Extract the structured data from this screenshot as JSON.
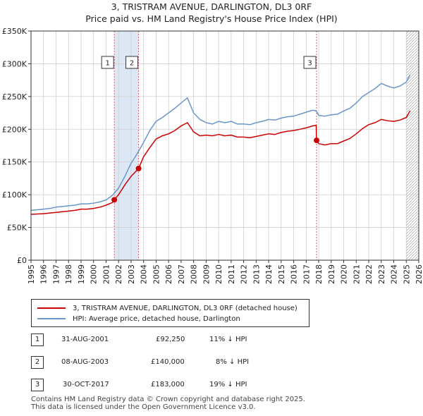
{
  "title": "3, TRISTRAM AVENUE, DARLINGTON, DL3 0RF",
  "subtitle": "Price paid vs. HM Land Registry's House Price Index (HPI)",
  "legend": {
    "property": "3, TRISTRAM AVENUE, DARLINGTON, DL3 0RF (detached house)",
    "hpi": "HPI: Average price, detached house, Darlington"
  },
  "transactions": [
    {
      "num": "1",
      "date": "31-AUG-2001",
      "price": "£92,250",
      "delta": "11% ↓ HPI"
    },
    {
      "num": "2",
      "date": "08-AUG-2003",
      "price": "£140,000",
      "delta": "8% ↓ HPI"
    },
    {
      "num": "3",
      "date": "30-OCT-2017",
      "price": "£183,000",
      "delta": "19% ↓ HPI"
    }
  ],
  "footer": {
    "line1": "Contains HM Land Registry data © Crown copyright and database right 2025.",
    "line2": "This data is licensed under the Open Government Licence v3.0."
  },
  "chart_data": {
    "type": "line",
    "title": "3, TRISTRAM AVENUE, DARLINGTON, DL3 0RF",
    "subtitle": "Price paid vs. HM Land Registry's House Price Index (HPI)",
    "xlim": [
      1995,
      2026
    ],
    "ylim": [
      0,
      350000
    ],
    "x_ticks": [
      1995,
      1996,
      1997,
      1998,
      1999,
      2000,
      2001,
      2002,
      2003,
      2004,
      2005,
      2006,
      2007,
      2008,
      2009,
      2010,
      2011,
      2012,
      2013,
      2014,
      2015,
      2016,
      2017,
      2018,
      2019,
      2020,
      2021,
      2022,
      2023,
      2024,
      2025,
      2026
    ],
    "y_ticks": [
      {
        "value": 0,
        "label": "£0"
      },
      {
        "value": 50000,
        "label": "£50K"
      },
      {
        "value": 100000,
        "label": "£100K"
      },
      {
        "value": 150000,
        "label": "£150K"
      },
      {
        "value": 200000,
        "label": "£200K"
      },
      {
        "value": 250000,
        "label": "£250K"
      },
      {
        "value": 300000,
        "label": "£300K"
      },
      {
        "value": 350000,
        "label": "£350K"
      }
    ],
    "grid": true,
    "legend_position": "below",
    "shaded_ranges": [
      [
        2001.66,
        2003.6
      ]
    ],
    "future_hatch_from": 2025.0,
    "colors": {
      "property": "#cc0000",
      "hpi": "#6a96cc",
      "shade": "#dde8f6",
      "grid": "#cfcfcf",
      "sale_line": "#e06060"
    },
    "series": [
      {
        "name": "HPI: Average price, detached house, Darlington",
        "x": [
          1995.0,
          1995.5,
          1996.0,
          1996.5,
          1997.0,
          1997.5,
          1998.0,
          1998.5,
          1999.0,
          1999.5,
          2000.0,
          2000.5,
          2001.0,
          2001.5,
          2002.0,
          2002.5,
          2003.0,
          2003.5,
          2004.0,
          2004.5,
          2005.0,
          2005.5,
          2006.0,
          2006.5,
          2007.0,
          2007.5,
          2008.0,
          2008.5,
          2009.0,
          2009.5,
          2010.0,
          2010.5,
          2011.0,
          2011.5,
          2012.0,
          2012.5,
          2013.0,
          2013.5,
          2014.0,
          2014.5,
          2015.0,
          2015.5,
          2016.0,
          2016.5,
          2017.0,
          2017.5,
          2017.8,
          2018.0,
          2018.5,
          2019.0,
          2019.5,
          2020.0,
          2020.5,
          2021.0,
          2021.5,
          2022.0,
          2022.5,
          2023.0,
          2023.5,
          2024.0,
          2024.5,
          2025.0,
          2025.3
        ],
        "y": [
          76000,
          77000,
          78000,
          79000,
          81000,
          82000,
          83000,
          84000,
          86000,
          86000,
          87000,
          89000,
          92000,
          99000,
          110000,
          128000,
          148000,
          163000,
          180000,
          198000,
          212000,
          218000,
          225000,
          232000,
          240000,
          248000,
          225000,
          215000,
          210000,
          208000,
          212000,
          210000,
          212000,
          208000,
          208000,
          207000,
          210000,
          212000,
          215000,
          214000,
          217000,
          219000,
          220000,
          223000,
          226000,
          229000,
          228000,
          221000,
          220000,
          222000,
          223000,
          228000,
          232000,
          240000,
          250000,
          256000,
          262000,
          270000,
          266000,
          263000,
          266000,
          272000,
          283000
        ]
      },
      {
        "name": "3, TRISTRAM AVENUE, DARLINGTON, DL3 0RF (detached house)",
        "x": [
          1995.0,
          1995.5,
          1996.0,
          1996.5,
          1997.0,
          1997.5,
          1998.0,
          1998.5,
          1999.0,
          1999.5,
          2000.0,
          2000.5,
          2001.0,
          2001.5,
          2001.66,
          2002.0,
          2002.5,
          2003.0,
          2003.6,
          2004.0,
          2004.5,
          2005.0,
          2005.5,
          2006.0,
          2006.5,
          2007.0,
          2007.5,
          2008.0,
          2008.5,
          2009.0,
          2009.5,
          2010.0,
          2010.5,
          2011.0,
          2011.5,
          2012.0,
          2012.5,
          2013.0,
          2013.5,
          2014.0,
          2014.5,
          2015.0,
          2015.5,
          2016.0,
          2016.5,
          2017.0,
          2017.5,
          2017.8,
          2017.83,
          2018.0,
          2018.5,
          2019.0,
          2019.5,
          2020.0,
          2020.5,
          2021.0,
          2021.5,
          2022.0,
          2022.5,
          2023.0,
          2023.5,
          2024.0,
          2024.5,
          2025.0,
          2025.3
        ],
        "y": [
          70000,
          70500,
          71000,
          72000,
          73000,
          74000,
          75000,
          76000,
          78000,
          78000,
          79000,
          81000,
          84000,
          88000,
          92250,
          100000,
          115000,
          128000,
          140000,
          158000,
          172000,
          185000,
          190000,
          193000,
          198000,
          205000,
          210000,
          196000,
          190000,
          191000,
          190000,
          192000,
          190000,
          191000,
          188000,
          188000,
          187000,
          189000,
          191000,
          193000,
          192000,
          195000,
          197000,
          198000,
          200000,
          202000,
          205000,
          206000,
          183000,
          178000,
          176000,
          178000,
          178000,
          182000,
          186000,
          193000,
          201000,
          207000,
          210000,
          215000,
          213000,
          212000,
          214000,
          218000,
          228000
        ]
      }
    ],
    "sales": [
      {
        "num": "1",
        "x": 2001.66,
        "y": 92250
      },
      {
        "num": "2",
        "x": 2003.6,
        "y": 140000
      },
      {
        "num": "3",
        "x": 2017.83,
        "y": 183000
      }
    ]
  }
}
